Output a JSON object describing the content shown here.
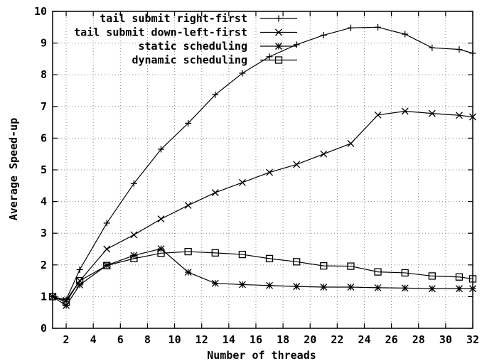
{
  "chart_data": {
    "type": "line",
    "xlabel": "Number of threads",
    "ylabel": "Average Speed-up",
    "xlim": [
      1,
      32
    ],
    "ylim": [
      0,
      10
    ],
    "xticks": [
      2,
      4,
      6,
      8,
      10,
      12,
      14,
      16,
      18,
      20,
      22,
      24,
      26,
      28,
      30,
      32
    ],
    "yticks": [
      0,
      1,
      2,
      3,
      4,
      5,
      6,
      7,
      8,
      9,
      10
    ],
    "grid": true,
    "legend_position": "top-left",
    "x": [
      1,
      2,
      3,
      5,
      7,
      9,
      11,
      13,
      15,
      17,
      19,
      21,
      23,
      25,
      27,
      29,
      31,
      32
    ],
    "series": [
      {
        "name": "tail submit right-first",
        "marker": "plus",
        "values": [
          1.0,
          0.9,
          1.85,
          3.32,
          4.57,
          5.65,
          6.47,
          7.37,
          8.05,
          8.57,
          8.95,
          9.25,
          9.48,
          9.5,
          9.28,
          8.85,
          8.8,
          8.68
        ]
      },
      {
        "name": "tail submit down-left-first",
        "marker": "cross",
        "values": [
          1.0,
          0.88,
          1.5,
          2.5,
          2.95,
          3.45,
          3.88,
          4.28,
          4.6,
          4.92,
          5.17,
          5.5,
          5.83,
          6.73,
          6.85,
          6.78,
          6.72,
          6.67
        ]
      },
      {
        "name": "static scheduling",
        "marker": "star",
        "values": [
          1.0,
          0.72,
          1.37,
          1.99,
          2.3,
          2.51,
          1.77,
          1.42,
          1.38,
          1.35,
          1.32,
          1.3,
          1.3,
          1.28,
          1.27,
          1.25,
          1.25,
          1.25
        ]
      },
      {
        "name": "dynamic scheduling",
        "marker": "square",
        "values": [
          1.0,
          0.83,
          1.5,
          1.98,
          2.2,
          2.37,
          2.42,
          2.38,
          2.33,
          2.2,
          2.1,
          1.97,
          1.96,
          1.78,
          1.75,
          1.65,
          1.62,
          1.56
        ]
      }
    ]
  }
}
